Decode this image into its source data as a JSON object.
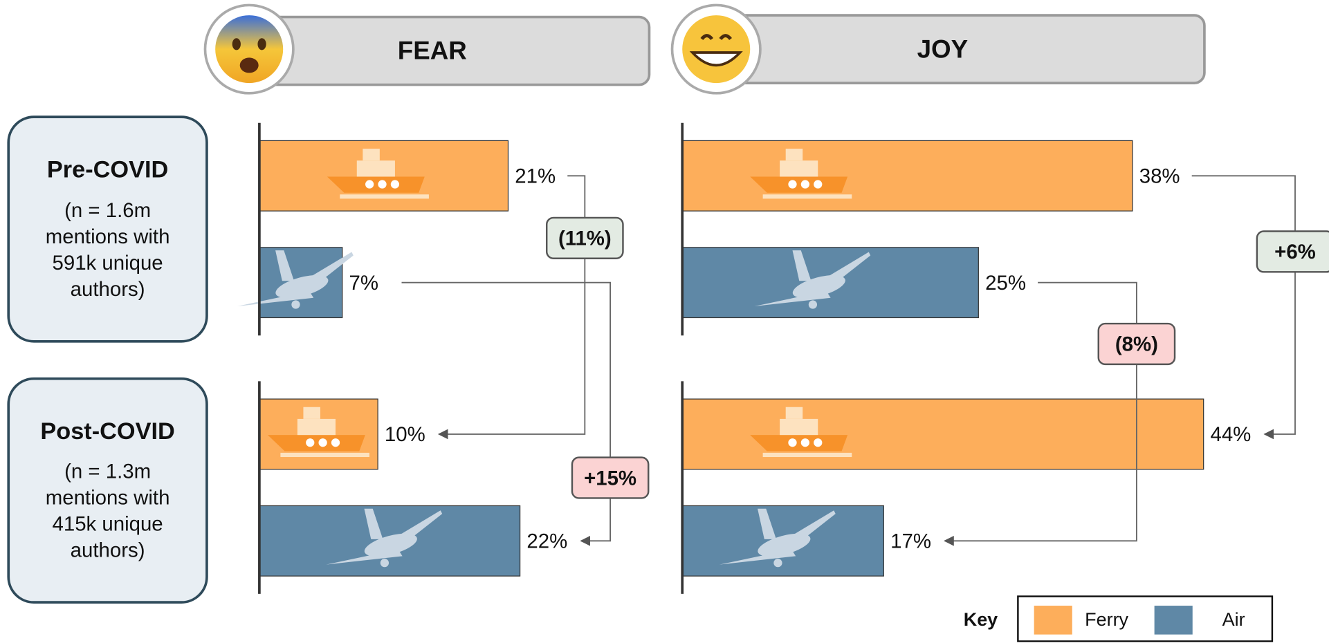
{
  "chart_data": [
    {
      "type": "bar",
      "orientation": "horizontal",
      "title": "FEAR",
      "categories": [
        "Pre-COVID",
        "Post-COVID"
      ],
      "series": [
        {
          "name": "Ferry",
          "color": "#fdae5b",
          "values": [
            21,
            10
          ],
          "value_labels": [
            "21%",
            "10%"
          ],
          "change_label": "(11%)",
          "change_color": "#e3ebe3"
        },
        {
          "name": "Air",
          "color": "#5f88a6",
          "values": [
            7,
            22
          ],
          "value_labels": [
            "7%",
            "22%"
          ],
          "change_label": "+15%",
          "change_color": "#fbd3d3"
        }
      ]
    },
    {
      "type": "bar",
      "orientation": "horizontal",
      "title": "JOY",
      "categories": [
        "Pre-COVID",
        "Post-COVID"
      ],
      "series": [
        {
          "name": "Ferry",
          "color": "#fdae5b",
          "values": [
            38,
            44
          ],
          "value_labels": [
            "38%",
            "44%"
          ],
          "change_label": "+6%",
          "change_color": "#e3ebe3"
        },
        {
          "name": "Air",
          "color": "#5f88a6",
          "values": [
            25,
            17
          ],
          "value_labels": [
            "25%",
            "17%"
          ],
          "change_label": "(8%)",
          "change_color": "#fbd3d3"
        }
      ]
    }
  ],
  "groups": [
    {
      "title": "Pre-COVID",
      "note": [
        "(n = 1.6m",
        "mentions with",
        "591k unique",
        "authors)"
      ]
    },
    {
      "title": "Post-COVID",
      "note": [
        "(n = 1.3m",
        "mentions with",
        "415k unique",
        "authors)"
      ]
    }
  ],
  "legend": {
    "title": "Key"
  }
}
